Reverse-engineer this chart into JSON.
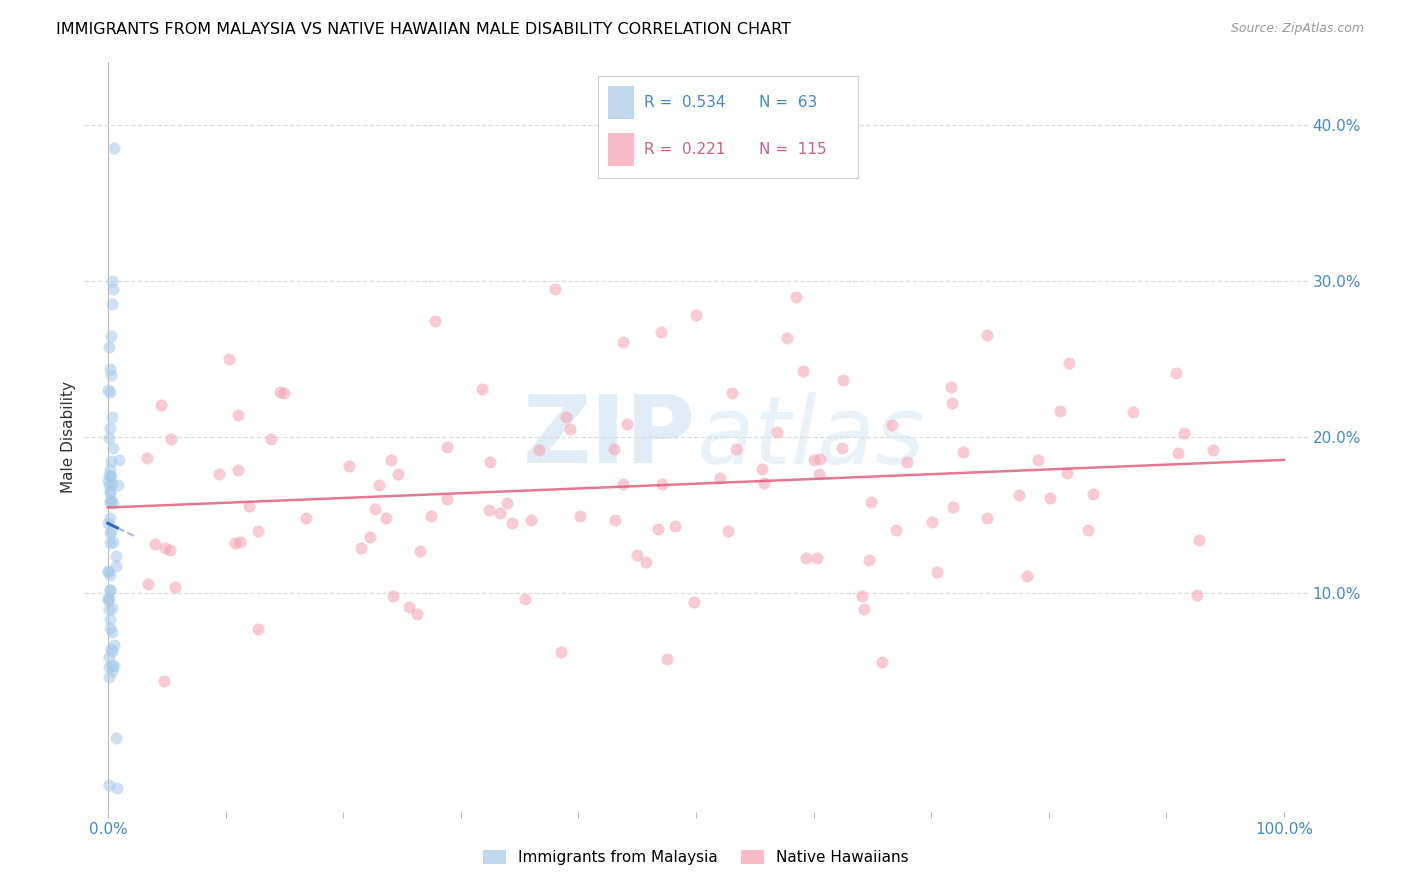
{
  "title": "IMMIGRANTS FROM MALAYSIA VS NATIVE HAWAIIAN MALE DISABILITY CORRELATION CHART",
  "source": "Source: ZipAtlas.com",
  "ylabel": "Male Disability",
  "right_yticks": [
    "40.0%",
    "30.0%",
    "20.0%",
    "10.0%"
  ],
  "right_ytick_vals": [
    0.4,
    0.3,
    0.2,
    0.1
  ],
  "xlim": [
    -0.02,
    1.02
  ],
  "ylim": [
    -0.04,
    0.44
  ],
  "legend_blue_R": "0.534",
  "legend_blue_N": "63",
  "legend_pink_R": "0.221",
  "legend_pink_N": "115",
  "blue_scatter_color": "#a8c8e8",
  "blue_line_color": "#3366cc",
  "pink_scatter_color": "#f4a0b0",
  "pink_line_color": "#e06080",
  "grid_color": "#dddddd",
  "watermark_color": "#c8dff0",
  "title_fontsize": 11.5,
  "axis_label_color": "#4488cc",
  "ylabel_color": "#333333"
}
